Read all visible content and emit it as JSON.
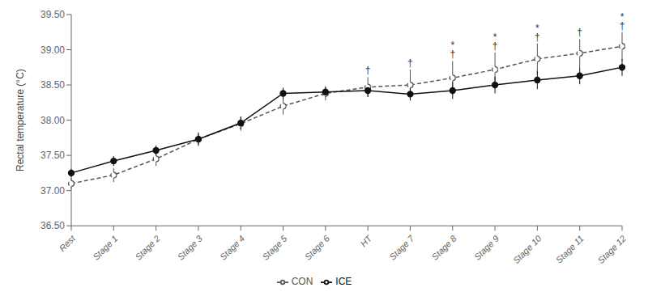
{
  "chart_data": {
    "type": "line",
    "categories": [
      "Rest",
      "Stage 1",
      "Stage 2",
      "Stage 3",
      "Stage 4",
      "Stage 5",
      "Stage 6",
      "HT",
      "Stage 7",
      "Stage 8",
      "Stage 9",
      "Stage 10",
      "Stage 11",
      "Stage 12"
    ],
    "series": [
      {
        "name": "CON",
        "color": "#555555",
        "line_style": "dashed",
        "marker": "circle_open",
        "values": [
          37.1,
          37.22,
          37.45,
          37.73,
          37.95,
          38.2,
          38.38,
          38.47,
          38.5,
          38.6,
          38.72,
          38.87,
          38.95,
          39.05
        ],
        "error": [
          0.08,
          0.1,
          0.1,
          0.1,
          0.1,
          0.12,
          0.1,
          0.14,
          0.22,
          0.24,
          0.24,
          0.22,
          0.2,
          0.2
        ]
      },
      {
        "name": "ICE",
        "color": "#111111",
        "line_style": "solid",
        "marker": "circle",
        "values": [
          37.25,
          37.42,
          37.57,
          37.73,
          37.96,
          38.38,
          38.4,
          38.42,
          38.37,
          38.42,
          38.5,
          38.57,
          38.63,
          38.75
        ],
        "error": [
          0.06,
          0.07,
          0.07,
          0.08,
          0.09,
          0.08,
          0.07,
          0.09,
          0.09,
          0.12,
          0.12,
          0.13,
          0.12,
          0.12
        ]
      }
    ],
    "y_label": "Rectal temperature (°C)",
    "ylim": [
      36.5,
      39.5
    ],
    "yticks": [
      {
        "value": 36.5,
        "label": "36.50"
      },
      {
        "value": 37,
        "label": "37.00"
      },
      {
        "value": 37.5,
        "label": "37.50"
      },
      {
        "value": 38,
        "label": "38.00"
      },
      {
        "value": 38.5,
        "label": "38.50"
      },
      {
        "value": 39,
        "label": "39.00"
      },
      {
        "value": 39.5,
        "label": "39.50"
      }
    ],
    "grid": false,
    "legend": "bottom",
    "annotations": [
      {
        "series": "CON",
        "category": "HT",
        "text": "†"
      },
      {
        "series": "CON",
        "category": "Stage 7",
        "text": "†"
      },
      {
        "series": "CON",
        "category": "Stage 8",
        "text": "†"
      },
      {
        "series": "CON",
        "category": "Stage 9",
        "text": "†"
      },
      {
        "series": "CON",
        "category": "Stage 10",
        "text": "†"
      },
      {
        "series": "CON",
        "category": "Stage 11",
        "text": "†"
      },
      {
        "series": "CON",
        "category": "Stage 12",
        "text": "†"
      },
      {
        "series": "CON",
        "category": "Stage 8",
        "text": "*"
      },
      {
        "series": "CON",
        "category": "Stage 9",
        "text": "*"
      },
      {
        "series": "CON",
        "category": "Stage 10",
        "text": "*"
      },
      {
        "series": "CON",
        "category": "Stage 12",
        "text": "*"
      }
    ]
  }
}
